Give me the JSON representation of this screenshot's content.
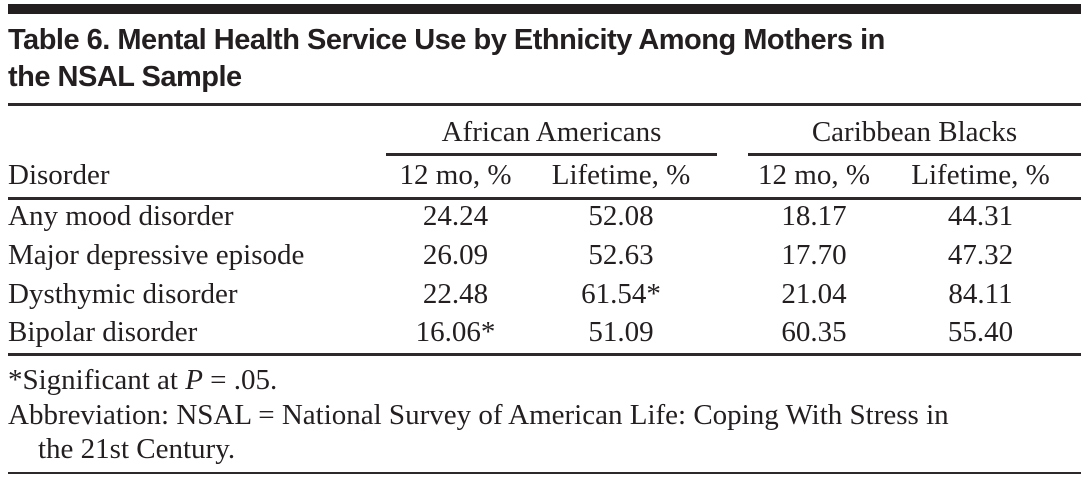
{
  "title": {
    "lines": [
      "Table 6. Mental Health Service Use by Ethnicity Among Mothers in",
      "the NSAL Sample"
    ]
  },
  "table": {
    "row_header_label": "Disorder",
    "groups": [
      {
        "label": "African Americans",
        "col_labels": [
          "12 mo, %",
          "Lifetime, %"
        ]
      },
      {
        "label": "Caribbean Blacks",
        "col_labels": [
          "12 mo, %",
          "Lifetime, %"
        ]
      }
    ],
    "rows": [
      {
        "disorder": "Any mood disorder",
        "values": [
          "24.24",
          "52.08",
          "18.17",
          "44.31"
        ]
      },
      {
        "disorder": "Major depressive episode",
        "values": [
          "26.09",
          "52.63",
          "17.70",
          "47.32"
        ]
      },
      {
        "disorder": "Dysthymic disorder",
        "values": [
          "22.48",
          "61.54*",
          "21.04",
          "84.11"
        ]
      },
      {
        "disorder": "Bipolar disorder",
        "values": [
          "16.06*",
          "51.09",
          "60.35",
          "55.40"
        ]
      }
    ]
  },
  "footnotes": {
    "significance": {
      "prefix": "*Significant at ",
      "p_symbol": "P",
      "suffix": " = .05."
    },
    "abbreviation": {
      "lines": [
        "Abbreviation: NSAL = National Survey of American Life: Coping With Stress in",
        "the 21st Century."
      ]
    }
  },
  "colors": {
    "text": "#231f20",
    "rule": "#2d292a",
    "background": "#ffffff"
  }
}
